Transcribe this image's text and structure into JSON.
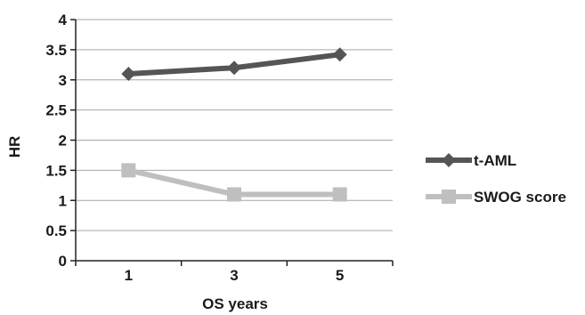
{
  "chart_data": {
    "type": "line",
    "title": "",
    "xlabel": "OS years",
    "ylabel": "HR",
    "categories": [
      "1",
      "3",
      "5"
    ],
    "ylim": [
      0,
      4
    ],
    "yticks": [
      "0",
      "0.5",
      "1",
      "1.5",
      "2",
      "2.5",
      "3",
      "3.5",
      "4"
    ],
    "grid": true,
    "legend_position": "right",
    "series": [
      {
        "name": "t-AML",
        "values": [
          3.1,
          3.2,
          3.42
        ],
        "marker": "diamond",
        "color": "#555555"
      },
      {
        "name": "SWOG score",
        "values": [
          1.5,
          1.1,
          1.1
        ],
        "marker": "square",
        "color": "#bfbfbf"
      }
    ]
  }
}
